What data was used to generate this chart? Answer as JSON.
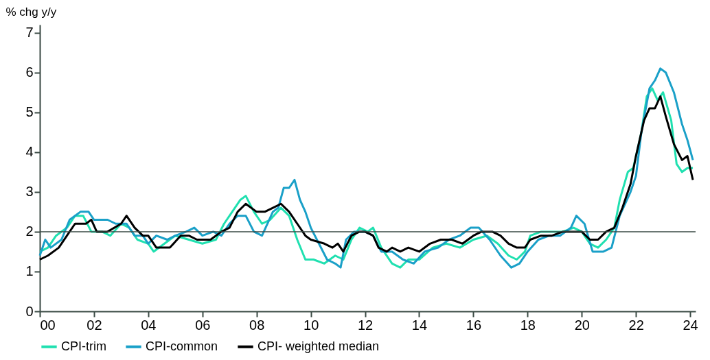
{
  "chart_data": {
    "type": "line",
    "ylabel": "% chg y/y",
    "xlim": [
      2000,
      2024.2
    ],
    "ylim": [
      0,
      7.2
    ],
    "xticks": [
      {
        "value": 2000,
        "label": "00"
      },
      {
        "value": 2002,
        "label": "02"
      },
      {
        "value": 2004,
        "label": "04"
      },
      {
        "value": 2006,
        "label": "06"
      },
      {
        "value": 2008,
        "label": "08"
      },
      {
        "value": 2010,
        "label": "10"
      },
      {
        "value": 2012,
        "label": "12"
      },
      {
        "value": 2014,
        "label": "14"
      },
      {
        "value": 2016,
        "label": "16"
      },
      {
        "value": 2018,
        "label": "18"
      },
      {
        "value": 2020,
        "label": "20"
      },
      {
        "value": 2022,
        "label": "22"
      },
      {
        "value": 2024,
        "label": "24"
      }
    ],
    "yticks": [
      0,
      1,
      2,
      3,
      4,
      5,
      6,
      7
    ],
    "grid": false,
    "legend": "bottom",
    "marker": "none",
    "line_style": "solid",
    "ref_lines": [
      {
        "axis": "y",
        "value": 2,
        "color": "#3a4a44"
      }
    ],
    "series": [
      {
        "name": "CPI-trim",
        "color": "#20e0b0",
        "x": [
          2000.0,
          2000.3,
          2000.6,
          2001.0,
          2001.3,
          2001.6,
          2001.9,
          2002.3,
          2002.6,
          2003.0,
          2003.3,
          2003.6,
          2004.0,
          2004.2,
          2004.6,
          2005.0,
          2005.5,
          2006.0,
          2006.5,
          2006.8,
          2007.1,
          2007.4,
          2007.6,
          2007.9,
          2008.2,
          2008.5,
          2008.9,
          2009.2,
          2009.5,
          2009.8,
          2010.1,
          2010.5,
          2010.9,
          2011.2,
          2011.5,
          2011.8,
          2012.1,
          2012.3,
          2012.6,
          2013.0,
          2013.3,
          2013.6,
          2014.0,
          2014.5,
          2015.0,
          2015.5,
          2016.0,
          2016.5,
          2016.9,
          2017.3,
          2017.6,
          2017.9,
          2018.1,
          2018.5,
          2018.9,
          2019.3,
          2019.7,
          2020.0,
          2020.3,
          2020.6,
          2020.9,
          2021.2,
          2021.4,
          2021.7,
          2021.9,
          2022.2,
          2022.4,
          2022.6,
          2022.8,
          2023.0,
          2023.3,
          2023.5,
          2023.7,
          2023.9,
          2024.1
        ],
        "values": [
          1.5,
          1.6,
          1.9,
          2.1,
          2.4,
          2.4,
          2.0,
          2.0,
          1.9,
          2.2,
          2.1,
          1.8,
          1.7,
          1.5,
          1.7,
          1.9,
          1.8,
          1.7,
          1.8,
          2.2,
          2.5,
          2.8,
          2.9,
          2.5,
          2.2,
          2.3,
          2.6,
          2.4,
          1.8,
          1.3,
          1.3,
          1.2,
          1.4,
          1.3,
          1.8,
          2.1,
          2.0,
          2.1,
          1.6,
          1.2,
          1.1,
          1.3,
          1.3,
          1.6,
          1.7,
          1.6,
          1.8,
          1.9,
          1.7,
          1.4,
          1.3,
          1.5,
          1.9,
          2.0,
          2.0,
          2.0,
          2.1,
          2.0,
          1.7,
          1.6,
          1.8,
          2.1,
          2.8,
          3.5,
          3.6,
          4.5,
          5.4,
          5.6,
          5.3,
          5.5,
          4.8,
          3.7,
          3.5,
          3.6,
          3.6
        ]
      },
      {
        "name": "CPI-common",
        "color": "#1aa0c8",
        "x": [
          2000.0,
          2000.2,
          2000.4,
          2000.8,
          2001.1,
          2001.5,
          2001.8,
          2002.0,
          2002.5,
          2002.8,
          2003.2,
          2003.5,
          2003.8,
          2004.0,
          2004.3,
          2004.7,
          2005.0,
          2005.4,
          2005.7,
          2006.0,
          2006.4,
          2006.7,
          2007.0,
          2007.3,
          2007.6,
          2007.9,
          2008.2,
          2008.6,
          2008.8,
          2009.0,
          2009.2,
          2009.4,
          2009.6,
          2009.8,
          2010.0,
          2010.3,
          2010.6,
          2010.9,
          2011.1,
          2011.3,
          2011.6,
          2012.0,
          2012.3,
          2012.6,
          2013.0,
          2013.4,
          2013.8,
          2014.2,
          2014.7,
          2015.1,
          2015.5,
          2015.9,
          2016.2,
          2016.6,
          2017.0,
          2017.4,
          2017.7,
          2018.0,
          2018.4,
          2018.8,
          2019.2,
          2019.6,
          2019.8,
          2020.1,
          2020.4,
          2020.8,
          2021.1,
          2021.4,
          2021.8,
          2022.0,
          2022.2,
          2022.5,
          2022.7,
          2022.9,
          2023.1,
          2023.4,
          2023.7,
          2023.9,
          2024.1
        ],
        "values": [
          1.4,
          1.8,
          1.6,
          1.8,
          2.3,
          2.5,
          2.5,
          2.3,
          2.3,
          2.2,
          2.2,
          1.9,
          1.9,
          1.7,
          1.9,
          1.8,
          1.9,
          2.0,
          2.1,
          1.9,
          2.0,
          1.9,
          2.2,
          2.4,
          2.4,
          2.0,
          1.9,
          2.5,
          2.6,
          3.1,
          3.1,
          3.3,
          2.8,
          2.5,
          2.1,
          1.7,
          1.3,
          1.2,
          1.1,
          1.8,
          2.0,
          2.0,
          1.9,
          1.5,
          1.5,
          1.3,
          1.2,
          1.5,
          1.6,
          1.8,
          1.9,
          2.1,
          2.1,
          1.8,
          1.4,
          1.1,
          1.2,
          1.5,
          1.8,
          1.9,
          1.9,
          2.1,
          2.4,
          2.2,
          1.5,
          1.5,
          1.6,
          2.4,
          3.0,
          3.4,
          4.5,
          5.6,
          5.8,
          6.1,
          6.0,
          5.5,
          4.7,
          4.3,
          3.8
        ]
      },
      {
        "name": "CPI- weighted median",
        "color": "#000000",
        "x": [
          2000.0,
          2000.3,
          2000.7,
          2001.0,
          2001.3,
          2001.7,
          2001.9,
          2002.1,
          2002.5,
          2003.0,
          2003.2,
          2003.5,
          2003.8,
          2004.0,
          2004.3,
          2004.8,
          2005.2,
          2005.5,
          2005.8,
          2006.3,
          2006.7,
          2007.0,
          2007.3,
          2007.6,
          2008.0,
          2008.3,
          2008.6,
          2008.9,
          2009.2,
          2009.5,
          2009.8,
          2010.0,
          2010.5,
          2010.8,
          2011.0,
          2011.2,
          2011.5,
          2011.8,
          2012.0,
          2012.3,
          2012.5,
          2012.8,
          2013.0,
          2013.3,
          2013.6,
          2014.0,
          2014.4,
          2014.8,
          2015.2,
          2015.6,
          2016.0,
          2016.3,
          2016.7,
          2017.0,
          2017.3,
          2017.6,
          2017.9,
          2018.1,
          2018.5,
          2018.9,
          2019.3,
          2019.7,
          2020.0,
          2020.3,
          2020.6,
          2020.9,
          2021.2,
          2021.5,
          2021.8,
          2022.0,
          2022.3,
          2022.5,
          2022.7,
          2022.9,
          2023.1,
          2023.4,
          2023.7,
          2023.9,
          2024.1
        ],
        "values": [
          1.3,
          1.4,
          1.6,
          1.9,
          2.2,
          2.2,
          2.3,
          2.0,
          2.0,
          2.2,
          2.4,
          2.1,
          1.9,
          1.9,
          1.6,
          1.6,
          1.9,
          1.9,
          1.8,
          1.8,
          2.0,
          2.1,
          2.5,
          2.7,
          2.5,
          2.5,
          2.6,
          2.7,
          2.5,
          2.2,
          1.9,
          1.8,
          1.7,
          1.6,
          1.7,
          1.5,
          1.9,
          2.0,
          2.0,
          1.9,
          1.6,
          1.5,
          1.6,
          1.5,
          1.6,
          1.5,
          1.7,
          1.8,
          1.8,
          1.7,
          1.9,
          2.0,
          2.0,
          1.9,
          1.7,
          1.6,
          1.6,
          1.8,
          1.9,
          1.9,
          2.0,
          2.0,
          2.0,
          1.8,
          1.8,
          2.0,
          2.1,
          2.6,
          3.2,
          3.9,
          4.8,
          5.1,
          5.1,
          5.4,
          4.9,
          4.2,
          3.8,
          3.9,
          3.3
        ]
      }
    ]
  }
}
